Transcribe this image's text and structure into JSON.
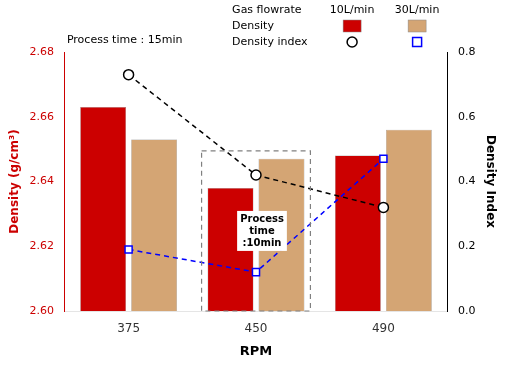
{
  "chart_data": {
    "type": "bar",
    "xlabel": "RPM",
    "ylabel": "Density (g/cm³)",
    "y2label": "Density Index",
    "categories": [
      "375",
      "450",
      "490"
    ],
    "series": [
      {
        "name": "Density",
        "type": "bar",
        "color": "#CC0000",
        "values": [
          2.663,
          2.638,
          2.648
        ]
      },
      {
        "name": "Density",
        "type": "bar",
        "color": "#D4A574",
        "values": [
          2.653,
          2.647,
          2.656
        ]
      },
      {
        "name": "Density index",
        "type": "line",
        "axis": "y2",
        "color": "black",
        "marker": "circle",
        "line_style": "dashed",
        "values": [
          0.73,
          0.42,
          0.32
        ]
      },
      {
        "name": "Density index",
        "type": "line",
        "axis": "y2",
        "color": "blue",
        "marker": "square",
        "line_style": "dashed",
        "values": [
          0.19,
          0.12,
          0.47
        ]
      }
    ],
    "legend": "upper right",
    "legend_title": "Gas flowrate",
    "legend_columns": [
      "10L/min",
      "30L/min"
    ],
    "ylim": [
      2.6,
      2.68
    ],
    "yticks": [
      {
        "value": 2.6,
        "label": "2.60"
      },
      2.62,
      2.64,
      2.66,
      2.68
    ],
    "y2lim": [
      0,
      0.8
    ],
    "y2ticks": [
      {
        "value": 0,
        "label": "0.0"
      },
      0.2,
      0.4,
      0.6,
      0.8
    ],
    "grid": false,
    "annotations": [
      {
        "text": "Process time : 15min"
      },
      {
        "text": "Process\ntime\n:10min",
        "category": "450"
      }
    ]
  }
}
